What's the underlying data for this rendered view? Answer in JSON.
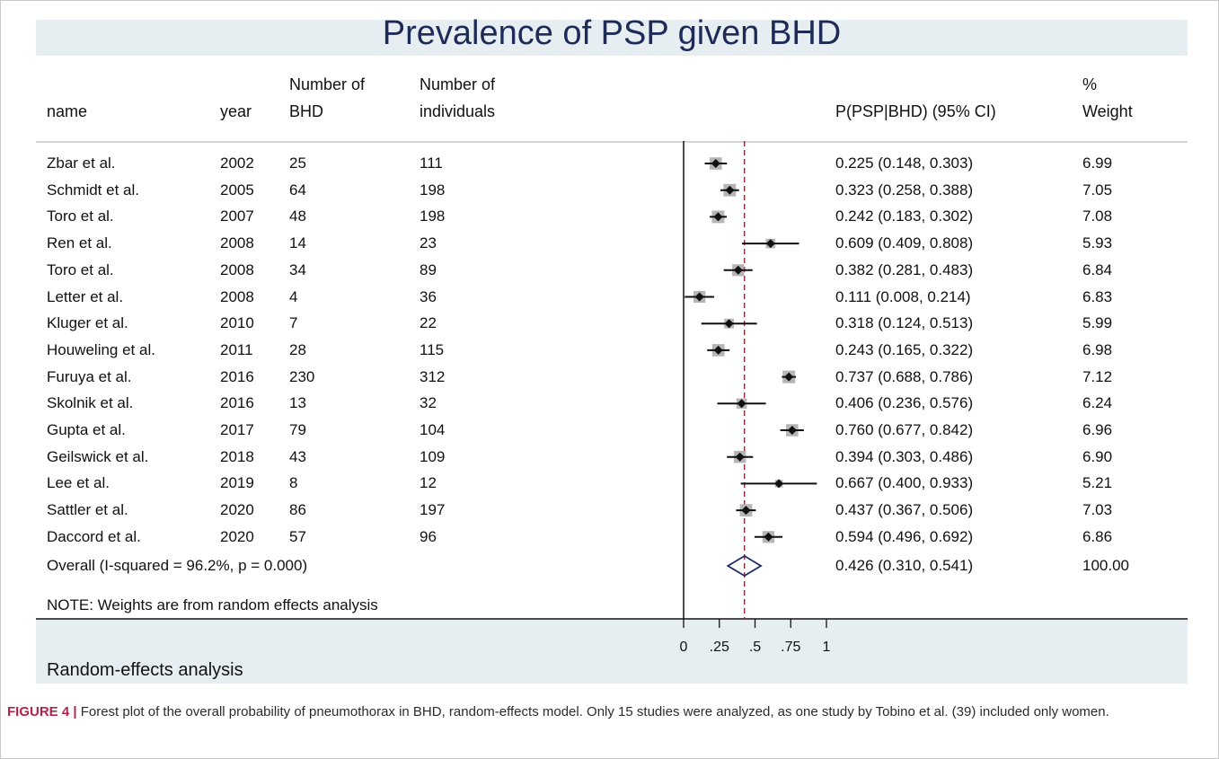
{
  "chart_data": {
    "type": "forest",
    "title": "Prevalence of PSP given BHD",
    "subtitle": "Random-effects analysis",
    "note": "NOTE: Weights are from random effects analysis",
    "columns": {
      "name": "name",
      "year": "year",
      "n_bhd": [
        "Number of",
        "BHD"
      ],
      "n_ind": [
        "Number of",
        "individuals"
      ],
      "estimate": "P(PSP|BHD) (95% CI)",
      "weight": [
        "%",
        "Weight"
      ]
    },
    "studies": [
      {
        "name": "Zbar et al.",
        "year": "2002",
        "n_bhd": "25",
        "n_ind": "111",
        "est": 0.225,
        "lo": 0.148,
        "hi": 0.303,
        "ci_text": "0.225 (0.148, 0.303)",
        "weight": "6.99"
      },
      {
        "name": "Schmidt et al.",
        "year": "2005",
        "n_bhd": "64",
        "n_ind": "198",
        "est": 0.323,
        "lo": 0.258,
        "hi": 0.388,
        "ci_text": "0.323 (0.258, 0.388)",
        "weight": "7.05"
      },
      {
        "name": "Toro et al.",
        "year": "2007",
        "n_bhd": "48",
        "n_ind": "198",
        "est": 0.242,
        "lo": 0.183,
        "hi": 0.302,
        "ci_text": "0.242 (0.183, 0.302)",
        "weight": "7.08"
      },
      {
        "name": "Ren et al.",
        "year": "2008",
        "n_bhd": "14",
        "n_ind": "23",
        "est": 0.609,
        "lo": 0.409,
        "hi": 0.808,
        "ci_text": "0.609 (0.409, 0.808)",
        "weight": "5.93"
      },
      {
        "name": "Toro et al.",
        "year": "2008",
        "n_bhd": "34",
        "n_ind": "89",
        "est": 0.382,
        "lo": 0.281,
        "hi": 0.483,
        "ci_text": "0.382 (0.281, 0.483)",
        "weight": "6.84"
      },
      {
        "name": "Letter et al.",
        "year": "2008",
        "n_bhd": "4",
        "n_ind": "36",
        "est": 0.111,
        "lo": 0.008,
        "hi": 0.214,
        "ci_text": "0.111 (0.008, 0.214)",
        "weight": "6.83"
      },
      {
        "name": "Kluger et al.",
        "year": "2010",
        "n_bhd": "7",
        "n_ind": "22",
        "est": 0.318,
        "lo": 0.124,
        "hi": 0.513,
        "ci_text": "0.318 (0.124, 0.513)",
        "weight": "5.99"
      },
      {
        "name": "Houweling et al.",
        "year": "2011",
        "n_bhd": "28",
        "n_ind": "115",
        "est": 0.243,
        "lo": 0.165,
        "hi": 0.322,
        "ci_text": "0.243 (0.165, 0.322)",
        "weight": "6.98"
      },
      {
        "name": "Furuya et al.",
        "year": "2016",
        "n_bhd": "230",
        "n_ind": "312",
        "est": 0.737,
        "lo": 0.688,
        "hi": 0.786,
        "ci_text": "0.737 (0.688, 0.786)",
        "weight": "7.12"
      },
      {
        "name": "Skolnik et al.",
        "year": "2016",
        "n_bhd": "13",
        "n_ind": "32",
        "est": 0.406,
        "lo": 0.236,
        "hi": 0.576,
        "ci_text": "0.406 (0.236, 0.576)",
        "weight": "6.24"
      },
      {
        "name": "Gupta et al.",
        "year": "2017",
        "n_bhd": "79",
        "n_ind": "104",
        "est": 0.76,
        "lo": 0.677,
        "hi": 0.842,
        "ci_text": "0.760 (0.677, 0.842)",
        "weight": "6.96"
      },
      {
        "name": "Geilswick et al.",
        "year": "2018",
        "n_bhd": "43",
        "n_ind": "109",
        "est": 0.394,
        "lo": 0.303,
        "hi": 0.486,
        "ci_text": "0.394 (0.303, 0.486)",
        "weight": "6.90"
      },
      {
        "name": "Lee et al.",
        "year": "2019",
        "n_bhd": "8",
        "n_ind": "12",
        "est": 0.667,
        "lo": 0.4,
        "hi": 0.933,
        "ci_text": "0.667 (0.400, 0.933)",
        "weight": "5.21"
      },
      {
        "name": "Sattler et al.",
        "year": "2020",
        "n_bhd": "86",
        "n_ind": "197",
        "est": 0.437,
        "lo": 0.367,
        "hi": 0.506,
        "ci_text": "0.437 (0.367, 0.506)",
        "weight": "7.03"
      },
      {
        "name": "Daccord et al.",
        "year": "2020",
        "n_bhd": "57",
        "n_ind": "96",
        "est": 0.594,
        "lo": 0.496,
        "hi": 0.692,
        "ci_text": "0.594 (0.496, 0.692)",
        "weight": "6.86"
      }
    ],
    "overall": {
      "label": "Overall  (I-squared = 96.2%, p = 0.000)",
      "est": 0.426,
      "lo": 0.31,
      "hi": 0.541,
      "ci_text": "0.426 (0.310, 0.541)",
      "weight": "100.00"
    },
    "x_axis": {
      "range": [
        0,
        1
      ],
      "ticks": [
        0,
        0.25,
        0.5,
        0.75,
        1
      ],
      "tick_labels": [
        "0",
        ".25",
        ".5",
        ".75",
        "1"
      ]
    },
    "colors": {
      "title": "#1e2a57",
      "band": "#e6eef2",
      "marker": "#111111",
      "weight_box": "#b5b5b5",
      "reference_line": "#8b1a2b",
      "overall_diamond": "#1f2a6b"
    }
  },
  "caption": {
    "label": "FIGURE 4 |",
    "text": " Forest plot of the overall probability of pneumothorax in BHD, random-effects model. Only 15 studies were analyzed, as one study by Tobino et al. (39) included only women."
  }
}
